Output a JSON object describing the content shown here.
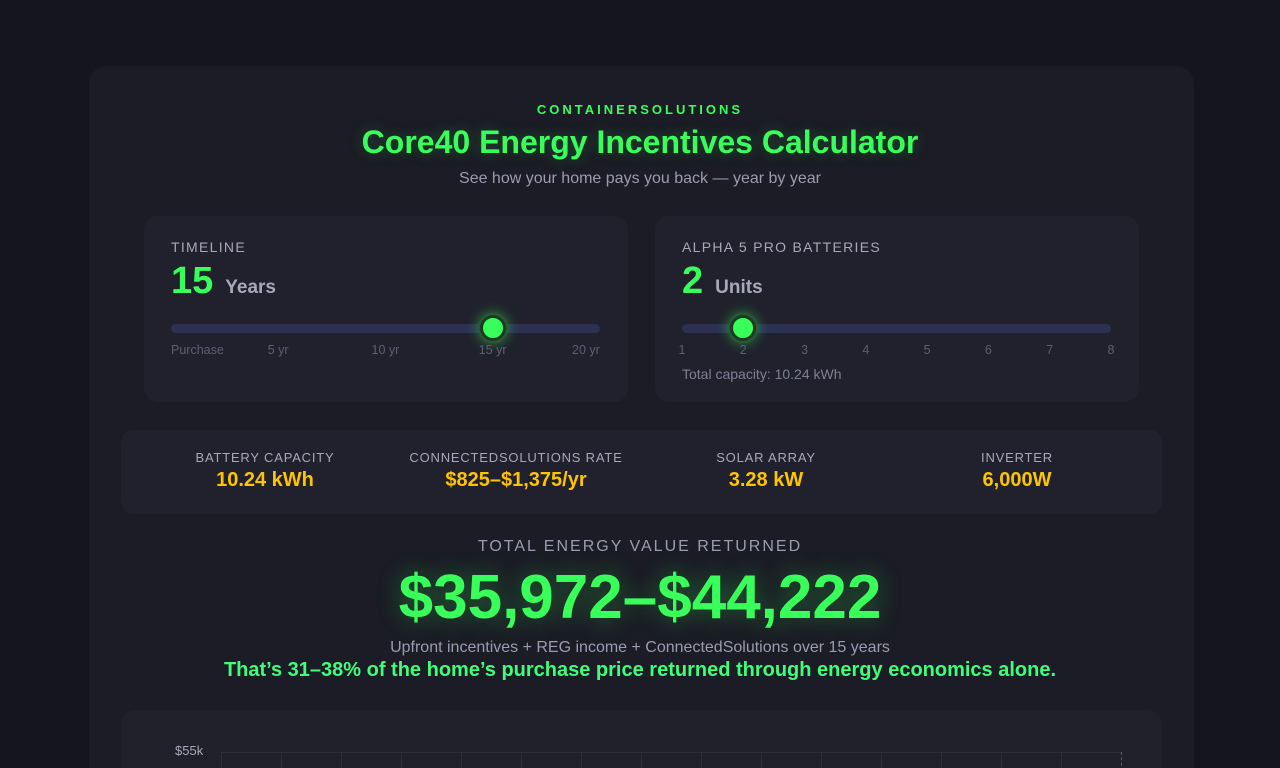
{
  "brand": "CONTAINERSOLUTIONS",
  "title": "Core40 Energy Incentives Calculator",
  "subtitle": "See how your home pays you back — year by year",
  "timeline": {
    "label": "TIMELINE",
    "value": "15",
    "unit": "Years",
    "ticks": [
      "Purchase",
      "5 yr",
      "10 yr",
      "15 yr",
      "20 yr"
    ],
    "min": 0,
    "max": 20,
    "current": 15
  },
  "batteries": {
    "label": "ALPHA 5 PRO BATTERIES",
    "value": "2",
    "unit": "Units",
    "ticks": [
      "1",
      "2",
      "3",
      "4",
      "5",
      "6",
      "7",
      "8"
    ],
    "min": 1,
    "max": 8,
    "current": 2,
    "capacity_note": "Total capacity: 10.24 kWh"
  },
  "stats": [
    {
      "label": "BATTERY CAPACITY",
      "value": "10.24 kWh"
    },
    {
      "label": "CONNECTEDSOLUTIONS RATE",
      "value": "$825–$1,375/yr"
    },
    {
      "label": "SOLAR ARRAY",
      "value": "3.28 kW"
    },
    {
      "label": "INVERTER",
      "value": "6,000W"
    }
  ],
  "total": {
    "label": "TOTAL ENERGY VALUE RETURNED",
    "value": "$35,972–$44,222",
    "description": "Upfront incentives + REG income + ConnectedSolutions over 15 years",
    "highlight": "That’s 31–38% of the home’s purchase price returned through energy economics alone."
  },
  "chart": {
    "y_tick": "$55k"
  },
  "colors": {
    "accent": "#39ff5a",
    "stat_value": "#ffc400",
    "track": "#2c3151"
  }
}
